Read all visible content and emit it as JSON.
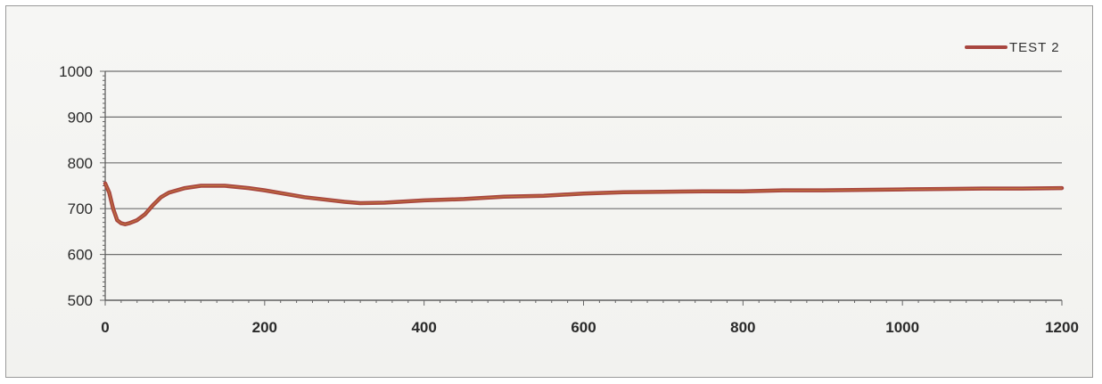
{
  "chart_data": {
    "type": "line",
    "title": "",
    "xlabel": "",
    "ylabel": "",
    "xlim": [
      0,
      1200
    ],
    "ylim": [
      500,
      1000
    ],
    "x_ticks": [
      "0",
      "200",
      "400",
      "600",
      "800",
      "1000",
      "1200"
    ],
    "y_ticks": [
      "500",
      "600",
      "700",
      "800",
      "900",
      "1000"
    ],
    "grid": "horizontal",
    "legend_position": "top-right",
    "series": [
      {
        "name": "TEST 2",
        "color": "#a8463f",
        "x": [
          0,
          5,
          10,
          15,
          20,
          25,
          30,
          40,
          50,
          60,
          70,
          80,
          100,
          120,
          150,
          180,
          200,
          250,
          300,
          320,
          350,
          400,
          450,
          500,
          550,
          600,
          650,
          700,
          750,
          800,
          850,
          900,
          950,
          1000,
          1050,
          1100,
          1150,
          1200
        ],
        "y": [
          755,
          735,
          700,
          675,
          668,
          666,
          668,
          675,
          688,
          708,
          725,
          735,
          745,
          750,
          750,
          745,
          740,
          725,
          715,
          712,
          713,
          718,
          721,
          726,
          728,
          733,
          736,
          737,
          738,
          738,
          740,
          740,
          741,
          742,
          743,
          744,
          744,
          745
        ]
      }
    ]
  }
}
